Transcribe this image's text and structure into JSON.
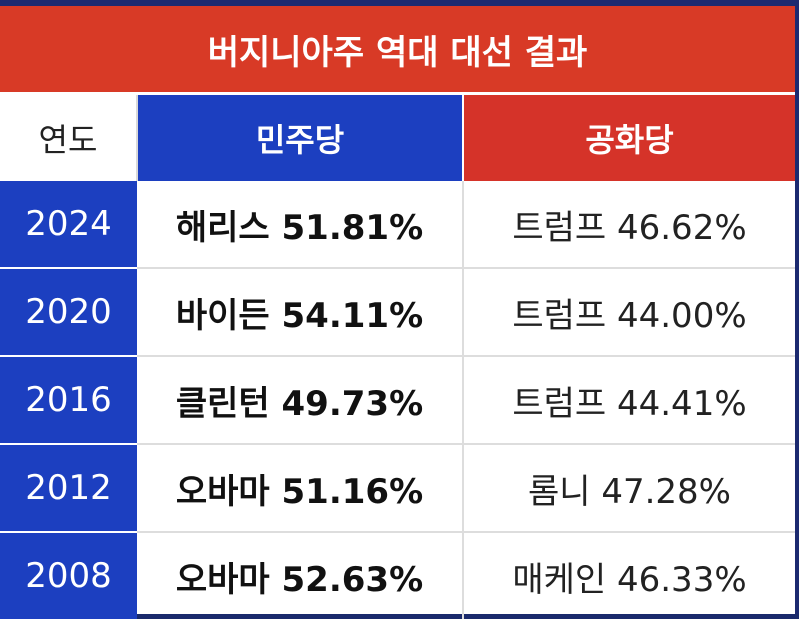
{
  "title": "버지니아주 역대 대선 결과",
  "headers": {
    "year": "연도",
    "dem": "민주당",
    "rep": "공화당"
  },
  "colors": {
    "title_bg": "#d83a26",
    "dem": "#1c3fc0",
    "rep": "#d53329"
  },
  "rows": [
    {
      "year": "2024",
      "dem": "해리스 51.81%",
      "rep": "트럼프 46.62%"
    },
    {
      "year": "2020",
      "dem": "바이든 54.11%",
      "rep": "트럼프 44.00%"
    },
    {
      "year": "2016",
      "dem": "클린턴 49.73%",
      "rep": "트럼프 44.41%"
    },
    {
      "year": "2012",
      "dem": "오바마 51.16%",
      "rep": "롬니 47.28%"
    },
    {
      "year": "2008",
      "dem": "오바마 52.63%",
      "rep": "매케인 46.33%"
    }
  ]
}
